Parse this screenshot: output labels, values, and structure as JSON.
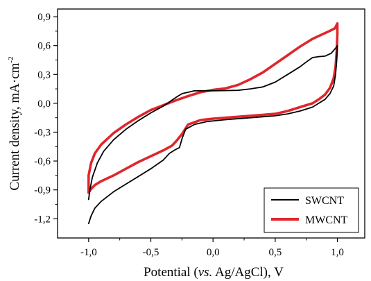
{
  "chart_data": {
    "type": "line",
    "xlabel": "Potential (vs. Ag/AgCl), V",
    "xlabel_parts": [
      "Potential (",
      "vs.",
      " Ag/AgCl), V"
    ],
    "ylabel": "Current density, mA·cm⁻²",
    "ylabel_main": "Current density, mA·cm",
    "ylabel_sup": "-2",
    "xlim": [
      -1.25,
      1.22
    ],
    "ylim": [
      -1.4,
      0.98
    ],
    "xticks": [
      -1.0,
      -0.5,
      0.0,
      0.5,
      1.0
    ],
    "xtick_labels": [
      "-1,0",
      "-0,5",
      "0,0",
      "0,5",
      "1,0"
    ],
    "yticks": [
      -1.2,
      -0.9,
      -0.6,
      -0.3,
      0.0,
      0.3,
      0.6,
      0.9
    ],
    "ytick_labels": [
      "-1,2",
      "-0,9",
      "-0,6",
      "-0,3",
      "0,0",
      "0,3",
      "0,6",
      "0,9"
    ],
    "grid": false,
    "legend_position": "bottom-right",
    "series": [
      {
        "name": "SWCNT",
        "color": "#000000",
        "points": [
          [
            -1.0,
            -1.25
          ],
          [
            -0.98,
            -1.17
          ],
          [
            -0.95,
            -1.09
          ],
          [
            -0.9,
            -1.02
          ],
          [
            -0.85,
            -0.97
          ],
          [
            -0.8,
            -0.92
          ],
          [
            -0.7,
            -0.84
          ],
          [
            -0.6,
            -0.76
          ],
          [
            -0.5,
            -0.68
          ],
          [
            -0.4,
            -0.59
          ],
          [
            -0.35,
            -0.52
          ],
          [
            -0.3,
            -0.48
          ],
          [
            -0.27,
            -0.46
          ],
          [
            -0.25,
            -0.37
          ],
          [
            -0.22,
            -0.27
          ],
          [
            -0.15,
            -0.22
          ],
          [
            -0.05,
            -0.19
          ],
          [
            0.1,
            -0.17
          ],
          [
            0.3,
            -0.15
          ],
          [
            0.5,
            -0.13
          ],
          [
            0.6,
            -0.11
          ],
          [
            0.7,
            -0.08
          ],
          [
            0.8,
            -0.04
          ],
          [
            0.85,
            0.0
          ],
          [
            0.9,
            0.04
          ],
          [
            0.94,
            0.1
          ],
          [
            0.97,
            0.18
          ],
          [
            0.985,
            0.3
          ],
          [
            0.995,
            0.45
          ],
          [
            1.0,
            0.6
          ],
          [
            0.99,
            0.58
          ],
          [
            0.95,
            0.52
          ],
          [
            0.9,
            0.49
          ],
          [
            0.85,
            0.485
          ],
          [
            0.8,
            0.475
          ],
          [
            0.75,
            0.43
          ],
          [
            0.7,
            0.38
          ],
          [
            0.6,
            0.3
          ],
          [
            0.5,
            0.22
          ],
          [
            0.4,
            0.17
          ],
          [
            0.3,
            0.15
          ],
          [
            0.2,
            0.135
          ],
          [
            0.0,
            0.13
          ],
          [
            -0.15,
            0.13
          ],
          [
            -0.25,
            0.1
          ],
          [
            -0.3,
            0.06
          ],
          [
            -0.4,
            -0.03
          ],
          [
            -0.5,
            -0.1
          ],
          [
            -0.6,
            -0.18
          ],
          [
            -0.7,
            -0.27
          ],
          [
            -0.8,
            -0.38
          ],
          [
            -0.88,
            -0.5
          ],
          [
            -0.93,
            -0.62
          ],
          [
            -0.97,
            -0.77
          ],
          [
            -0.99,
            -0.9
          ],
          [
            -1.0,
            -1.0
          ]
        ]
      },
      {
        "name": "MWCNT",
        "color": "#e0262c",
        "points": [
          [
            -1.0,
            -0.93
          ],
          [
            -0.98,
            -0.89
          ],
          [
            -0.95,
            -0.85
          ],
          [
            -0.9,
            -0.81
          ],
          [
            -0.8,
            -0.75
          ],
          [
            -0.7,
            -0.68
          ],
          [
            -0.6,
            -0.61
          ],
          [
            -0.5,
            -0.55
          ],
          [
            -0.4,
            -0.49
          ],
          [
            -0.33,
            -0.44
          ],
          [
            -0.3,
            -0.4
          ],
          [
            -0.25,
            -0.32
          ],
          [
            -0.2,
            -0.22
          ],
          [
            -0.1,
            -0.175
          ],
          [
            0.0,
            -0.16
          ],
          [
            0.2,
            -0.14
          ],
          [
            0.4,
            -0.12
          ],
          [
            0.5,
            -0.11
          ],
          [
            0.6,
            -0.08
          ],
          [
            0.7,
            -0.04
          ],
          [
            0.8,
            0.0
          ],
          [
            0.85,
            0.04
          ],
          [
            0.9,
            0.09
          ],
          [
            0.94,
            0.16
          ],
          [
            0.97,
            0.26
          ],
          [
            0.985,
            0.38
          ],
          [
            0.995,
            0.55
          ],
          [
            1.0,
            0.72
          ],
          [
            1.0,
            0.83
          ],
          [
            0.98,
            0.78
          ],
          [
            0.95,
            0.76
          ],
          [
            0.9,
            0.73
          ],
          [
            0.8,
            0.67
          ],
          [
            0.7,
            0.59
          ],
          [
            0.6,
            0.5
          ],
          [
            0.5,
            0.41
          ],
          [
            0.4,
            0.32
          ],
          [
            0.3,
            0.25
          ],
          [
            0.2,
            0.19
          ],
          [
            0.1,
            0.155
          ],
          [
            0.0,
            0.14
          ],
          [
            -0.1,
            0.115
          ],
          [
            -0.2,
            0.075
          ],
          [
            -0.3,
            0.03
          ],
          [
            -0.4,
            -0.02
          ],
          [
            -0.5,
            -0.07
          ],
          [
            -0.6,
            -0.14
          ],
          [
            -0.7,
            -0.22
          ],
          [
            -0.8,
            -0.31
          ],
          [
            -0.9,
            -0.43
          ],
          [
            -0.95,
            -0.52
          ],
          [
            -0.98,
            -0.62
          ],
          [
            -1.0,
            -0.75
          ],
          [
            -1.0,
            -0.85
          ],
          [
            -1.0,
            -0.93
          ]
        ]
      }
    ]
  }
}
